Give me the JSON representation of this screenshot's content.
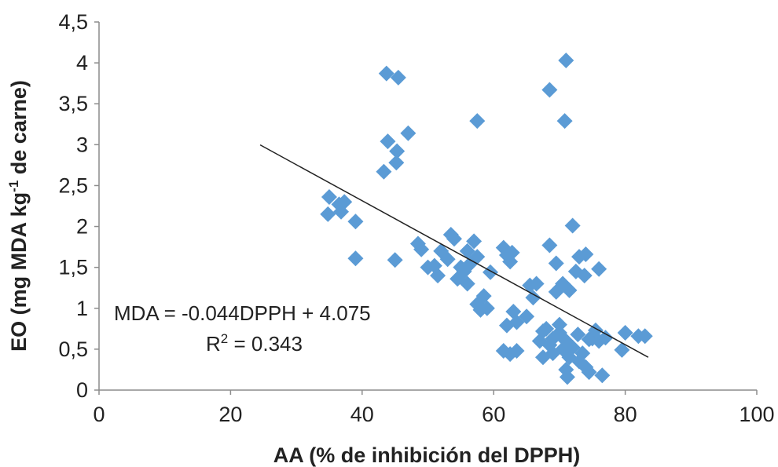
{
  "chart_data": {
    "type": "scatter",
    "xlabel": "AA (% de inhibición del DPPH)",
    "ylabel": {
      "main": "EO (mg MDA kg",
      "sup": "-1",
      "rest": " de carne)"
    },
    "xlim": [
      0,
      100
    ],
    "ylim": [
      0,
      4.5
    ],
    "x_ticks": [
      "0",
      "20",
      "40",
      "60",
      "80",
      "100"
    ],
    "y_ticks": [
      "0",
      "0,5",
      "1",
      "1,5",
      "2",
      "2,5",
      "3",
      "3,5",
      "4",
      "4,5"
    ],
    "grid": false,
    "marker": "diamond",
    "marker_color": "#5b9bd5",
    "trendline": {
      "type": "linear",
      "slope": -0.044,
      "intercept": 4.075,
      "x_range": [
        24.5,
        83.5
      ],
      "equation_text": "MDA = -0.044DPPH + 4.075",
      "r2_label": "R",
      "r2_sup": "2",
      "r2_value": " = 0.343"
    },
    "points": [
      [
        43.7,
        3.87
      ],
      [
        45.5,
        3.82
      ],
      [
        47.0,
        3.14
      ],
      [
        43.9,
        3.04
      ],
      [
        45.3,
        2.92
      ],
      [
        45.2,
        2.78
      ],
      [
        43.3,
        2.67
      ],
      [
        57.5,
        3.29
      ],
      [
        68.5,
        3.67
      ],
      [
        71.0,
        4.03
      ],
      [
        70.8,
        3.29
      ],
      [
        35.0,
        2.36
      ],
      [
        36.5,
        2.27
      ],
      [
        37.3,
        2.3
      ],
      [
        34.8,
        2.15
      ],
      [
        36.8,
        2.18
      ],
      [
        39.0,
        2.06
      ],
      [
        39.0,
        1.61
      ],
      [
        45.0,
        1.59
      ],
      [
        48.5,
        1.79
      ],
      [
        49.0,
        1.72
      ],
      [
        50.0,
        1.5
      ],
      [
        51.0,
        1.52
      ],
      [
        51.5,
        1.4
      ],
      [
        52.0,
        1.7
      ],
      [
        53.0,
        1.6
      ],
      [
        53.5,
        1.9
      ],
      [
        54.0,
        1.85
      ],
      [
        54.5,
        1.36
      ],
      [
        55.0,
        1.5
      ],
      [
        55.5,
        1.45
      ],
      [
        56.0,
        1.7
      ],
      [
        56.5,
        1.55
      ],
      [
        56.0,
        1.3
      ],
      [
        57.0,
        1.82
      ],
      [
        57.5,
        1.63
      ],
      [
        57.5,
        1.05
      ],
      [
        58.0,
        0.98
      ],
      [
        58.5,
        1.15
      ],
      [
        59.0,
        1.0
      ],
      [
        59.5,
        1.44
      ],
      [
        61.5,
        1.74
      ],
      [
        62.0,
        1.65
      ],
      [
        62.5,
        1.57
      ],
      [
        62.8,
        1.68
      ],
      [
        63.0,
        0.96
      ],
      [
        63.5,
        0.83
      ],
      [
        62.0,
        0.79
      ],
      [
        61.5,
        0.48
      ],
      [
        62.5,
        0.44
      ],
      [
        63.5,
        0.48
      ],
      [
        65.0,
        0.9
      ],
      [
        65.5,
        1.28
      ],
      [
        66.0,
        1.13
      ],
      [
        66.5,
        1.3
      ],
      [
        67.0,
        0.6
      ],
      [
        67.5,
        0.72
      ],
      [
        67.5,
        0.4
      ],
      [
        68.0,
        0.75
      ],
      [
        68.5,
        0.55
      ],
      [
        68.5,
        1.77
      ],
      [
        69.0,
        0.63
      ],
      [
        69.0,
        0.45
      ],
      [
        69.5,
        1.55
      ],
      [
        69.5,
        1.2
      ],
      [
        70.0,
        0.8
      ],
      [
        70.0,
        0.7
      ],
      [
        70.5,
        1.3
      ],
      [
        70.5,
        0.5
      ],
      [
        71.0,
        0.6
      ],
      [
        71.0,
        0.25
      ],
      [
        71.2,
        0.16
      ],
      [
        71.5,
        1.22
      ],
      [
        71.5,
        0.4
      ],
      [
        72.0,
        2.01
      ],
      [
        72.0,
        0.52
      ],
      [
        72.5,
        1.45
      ],
      [
        72.8,
        0.68
      ],
      [
        73.0,
        1.63
      ],
      [
        73.0,
        0.35
      ],
      [
        73.5,
        0.45
      ],
      [
        73.8,
        1.4
      ],
      [
        74.0,
        1.66
      ],
      [
        74.0,
        0.28
      ],
      [
        74.5,
        0.62
      ],
      [
        74.5,
        0.22
      ],
      [
        75.0,
        0.63
      ],
      [
        75.5,
        0.73
      ],
      [
        76.0,
        1.48
      ],
      [
        76.0,
        0.6
      ],
      [
        76.5,
        0.18
      ],
      [
        77.0,
        0.64
      ],
      [
        79.5,
        0.49
      ],
      [
        80.0,
        0.7
      ],
      [
        82.0,
        0.66
      ],
      [
        83.0,
        0.66
      ]
    ]
  }
}
